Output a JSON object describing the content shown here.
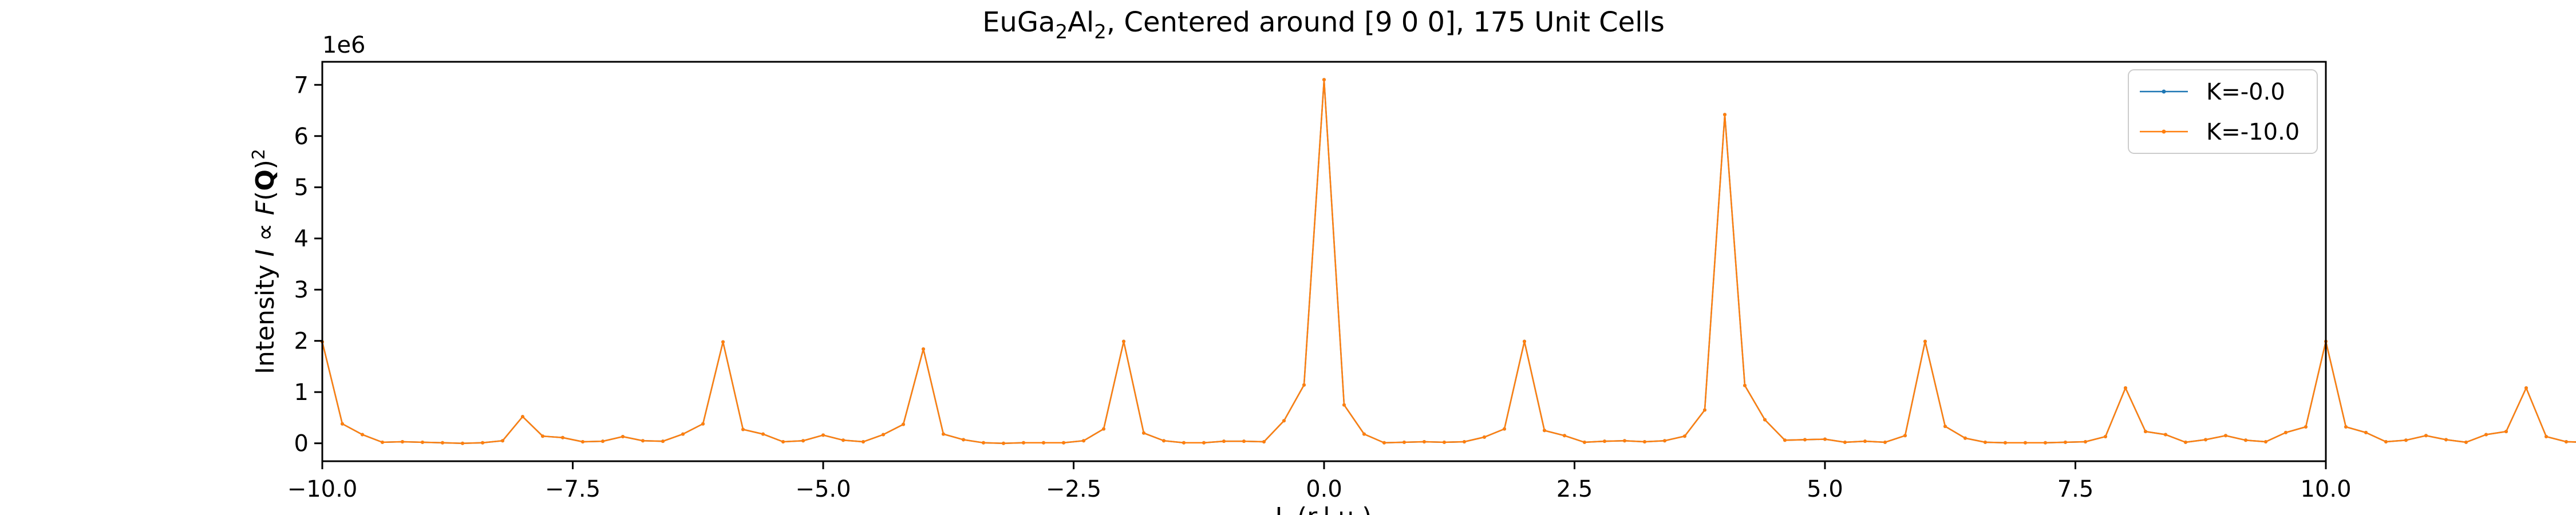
{
  "chart_data": {
    "type": "line",
    "title": "EuGa₂Al₂, Centered around [9 0 0], 175 Unit Cells",
    "title_parts": {
      "pre": "EuGa",
      "sub1": "2",
      "mid": "Al",
      "sub2": "2",
      "post": ", Centered around [9 0 0], 175 Unit Cells"
    },
    "xlabel": "L (r.l.u.)",
    "ylabel": "Intensity I ∝ F(Q)²",
    "ylabel_parts": {
      "pre": "Intensity ",
      "i": "I",
      "prop": " ∝ ",
      "f": "F",
      "open": "(",
      "q": "Q",
      "close": ")",
      "sq": "2"
    },
    "y_multiplier_label": "1e6",
    "xlim": [
      -10,
      10
    ],
    "ylim": [
      -0.35,
      7.45
    ],
    "x_ticks": [
      -10,
      -7.5,
      -5,
      -2.5,
      0,
      2.5,
      5,
      7.5,
      10
    ],
    "x_tick_labels": [
      "−10.0",
      "−7.5",
      "−5.0",
      "−2.5",
      "0.0",
      "2.5",
      "5.0",
      "7.5",
      "10.0"
    ],
    "y_ticks": [
      0,
      1,
      2,
      3,
      4,
      5,
      6,
      7
    ],
    "y_tick_labels": [
      "0",
      "1",
      "2",
      "3",
      "4",
      "5",
      "6",
      "7"
    ],
    "grid": false,
    "legend_position": "top-right",
    "x_step": 0.2,
    "series": [
      {
        "name": "K=-0.0",
        "color": "#1f77b4",
        "values": [
          1.98,
          0.38,
          0.17,
          0.02,
          0.03,
          0.02,
          0.01,
          0.0,
          0.01,
          0.05,
          0.52,
          0.14,
          0.11,
          0.03,
          0.04,
          0.13,
          0.05,
          0.04,
          0.18,
          0.38,
          1.98,
          0.27,
          0.18,
          0.03,
          0.05,
          0.16,
          0.06,
          0.03,
          0.17,
          0.37,
          1.84,
          0.18,
          0.07,
          0.01,
          0.0,
          0.01,
          0.01,
          0.01,
          0.05,
          0.28,
          1.99,
          0.2,
          0.05,
          0.01,
          0.01,
          0.04,
          0.04,
          0.03,
          0.44,
          1.14,
          7.1,
          0.75,
          0.18,
          0.01,
          0.02,
          0.03,
          0.02,
          0.03,
          0.12,
          0.28,
          1.99,
          0.25,
          0.15,
          0.02,
          0.04,
          0.05,
          0.03,
          0.05,
          0.14,
          0.65,
          6.42,
          1.13,
          0.46,
          0.06,
          0.07,
          0.08,
          0.02,
          0.04,
          0.02,
          0.15,
          1.99,
          0.33,
          0.1,
          0.02,
          0.01,
          0.01,
          0.01,
          0.02,
          0.03,
          0.13,
          1.08,
          0.23,
          0.17,
          0.02,
          0.07,
          0.15,
          0.06,
          0.03,
          0.21,
          0.32,
          1.99,
          0.32,
          0.21,
          0.03,
          0.06,
          0.15,
          0.07,
          0.02,
          0.17,
          0.23,
          1.08,
          0.13,
          0.03,
          0.02,
          0.01,
          0.01,
          0.01,
          0.02,
          0.1,
          0.33,
          1.99,
          0.15,
          0.02,
          0.04,
          0.02,
          0.08,
          0.07,
          0.06,
          0.46,
          1.13,
          6.42,
          0.65,
          0.14,
          0.05,
          0.03,
          0.05,
          0.04,
          0.02,
          0.15,
          0.25,
          1.99,
          0.28,
          0.12,
          0.03,
          0.02,
          0.03,
          0.02,
          0.01,
          0.18,
          0.75,
          7.1,
          1.14,
          0.44,
          0.03,
          0.04,
          0.04,
          0.01,
          0.01,
          0.05,
          0.2,
          1.99,
          0.28,
          0.05,
          0.01,
          0.01,
          0.01,
          0.0,
          0.01,
          0.07,
          0.18,
          1.84,
          0.37,
          0.17,
          0.03,
          0.06,
          0.16,
          0.05,
          0.03,
          0.18,
          0.27,
          1.98,
          0.38,
          0.18,
          0.04,
          0.05,
          0.13,
          0.04,
          0.03,
          0.11,
          0.14,
          0.52,
          0.05,
          0.01,
          0.0,
          0.01,
          0.02,
          0.03,
          0.02,
          0.17,
          0.38,
          1.98
        ]
      },
      {
        "name": "K=-10.0",
        "color": "#ff7f0e",
        "values": [
          1.98,
          0.38,
          0.17,
          0.02,
          0.03,
          0.02,
          0.01,
          0.0,
          0.01,
          0.05,
          0.52,
          0.14,
          0.11,
          0.03,
          0.04,
          0.13,
          0.05,
          0.04,
          0.18,
          0.38,
          1.98,
          0.27,
          0.18,
          0.03,
          0.05,
          0.16,
          0.06,
          0.03,
          0.17,
          0.37,
          1.84,
          0.18,
          0.07,
          0.01,
          0.0,
          0.01,
          0.01,
          0.01,
          0.05,
          0.28,
          1.99,
          0.2,
          0.05,
          0.01,
          0.01,
          0.04,
          0.04,
          0.03,
          0.44,
          1.14,
          7.1,
          0.75,
          0.18,
          0.01,
          0.02,
          0.03,
          0.02,
          0.03,
          0.12,
          0.28,
          1.99,
          0.25,
          0.15,
          0.02,
          0.04,
          0.05,
          0.03,
          0.05,
          0.14,
          0.65,
          6.42,
          1.13,
          0.46,
          0.06,
          0.07,
          0.08,
          0.02,
          0.04,
          0.02,
          0.15,
          1.99,
          0.33,
          0.1,
          0.02,
          0.01,
          0.01,
          0.01,
          0.02,
          0.03,
          0.13,
          1.08,
          0.23,
          0.17,
          0.02,
          0.07,
          0.15,
          0.06,
          0.03,
          0.21,
          0.32,
          1.99,
          0.32,
          0.21,
          0.03,
          0.06,
          0.15,
          0.07,
          0.02,
          0.17,
          0.23,
          1.08,
          0.13,
          0.03,
          0.02,
          0.01,
          0.01,
          0.01,
          0.02,
          0.1,
          0.33,
          1.99,
          0.15,
          0.02,
          0.04,
          0.02,
          0.08,
          0.07,
          0.06,
          0.46,
          1.13,
          6.42,
          0.65,
          0.14,
          0.05,
          0.03,
          0.05,
          0.04,
          0.02,
          0.15,
          0.25,
          1.99,
          0.28,
          0.12,
          0.03,
          0.02,
          0.03,
          0.02,
          0.01,
          0.18,
          0.75,
          7.1,
          1.14,
          0.44,
          0.03,
          0.04,
          0.04,
          0.01,
          0.01,
          0.05,
          0.2,
          1.99,
          0.28,
          0.05,
          0.01,
          0.01,
          0.01,
          0.0,
          0.01,
          0.07,
          0.18,
          1.84,
          0.37,
          0.17,
          0.03,
          0.06,
          0.16,
          0.05,
          0.03,
          0.18,
          0.27,
          1.98,
          0.38,
          0.18,
          0.04,
          0.05,
          0.13,
          0.04,
          0.03,
          0.11,
          0.14,
          0.52,
          0.05,
          0.01,
          0.0,
          0.01,
          0.02,
          0.03,
          0.02,
          0.17,
          0.38,
          1.98
        ]
      }
    ]
  }
}
